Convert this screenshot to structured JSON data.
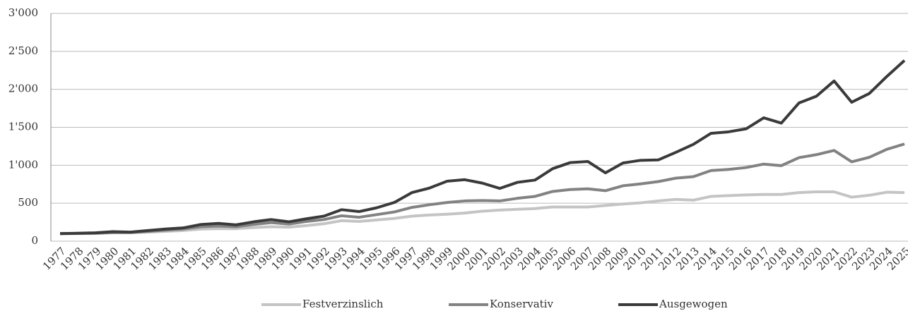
{
  "chart_data": {
    "type": "line",
    "x": [
      1977,
      1978,
      1979,
      1980,
      1981,
      1982,
      1983,
      1984,
      1985,
      1986,
      1987,
      1988,
      1989,
      1990,
      1991,
      1992,
      1993,
      1994,
      1995,
      1996,
      1997,
      1998,
      1999,
      2000,
      2001,
      2002,
      2003,
      2004,
      2005,
      2006,
      2007,
      2008,
      2009,
      2010,
      2011,
      2012,
      2013,
      2014,
      2015,
      2016,
      2017,
      2018,
      2019,
      2020,
      2021,
      2022,
      2023,
      2024,
      2025
    ],
    "series": [
      {
        "name": "Festverzinslich",
        "color": "#c4c4c4",
        "values": [
          100,
          100,
          102,
          110,
          110,
          120,
          130,
          140,
          160,
          165,
          165,
          180,
          190,
          185,
          205,
          230,
          270,
          260,
          280,
          300,
          330,
          345,
          355,
          370,
          395,
          410,
          420,
          430,
          450,
          450,
          450,
          470,
          490,
          505,
          530,
          550,
          540,
          590,
          600,
          610,
          615,
          615,
          640,
          650,
          650,
          580,
          605,
          645,
          640
        ]
      },
      {
        "name": "Konservativ",
        "color": "#828282",
        "values": [
          100,
          102,
          105,
          115,
          115,
          130,
          145,
          160,
          190,
          200,
          190,
          220,
          245,
          225,
          260,
          285,
          335,
          315,
          350,
          385,
          445,
          480,
          510,
          530,
          535,
          530,
          565,
          590,
          655,
          680,
          690,
          665,
          730,
          755,
          785,
          830,
          850,
          930,
          945,
          970,
          1015,
          995,
          1100,
          1140,
          1195,
          1045,
          1105,
          1210,
          1280
        ]
      },
      {
        "name": "Ausgewogen",
        "color": "#3a3a3a",
        "values": [
          100,
          105,
          110,
          125,
          120,
          140,
          160,
          175,
          220,
          235,
          215,
          255,
          285,
          255,
          295,
          330,
          415,
          390,
          440,
          510,
          640,
          700,
          790,
          810,
          765,
          695,
          775,
          805,
          955,
          1035,
          1050,
          900,
          1030,
          1065,
          1070,
          1170,
          1275,
          1420,
          1440,
          1480,
          1625,
          1555,
          1820,
          1910,
          2110,
          1830,
          1945,
          2170,
          2380
        ]
      }
    ],
    "xlim": [
      1977,
      2025
    ],
    "ylim": [
      0,
      3000
    ],
    "yticks": [
      0,
      500,
      {
        "value": 1000,
        "label": "1'000"
      },
      {
        "value": 1500,
        "label": "1'500"
      },
      {
        "value": 2000,
        "label": "2'000"
      },
      {
        "value": 2500,
        "label": "2'500"
      },
      {
        "value": 3000,
        "label": "3'000"
      }
    ],
    "grid": true,
    "legend": "bottom"
  }
}
